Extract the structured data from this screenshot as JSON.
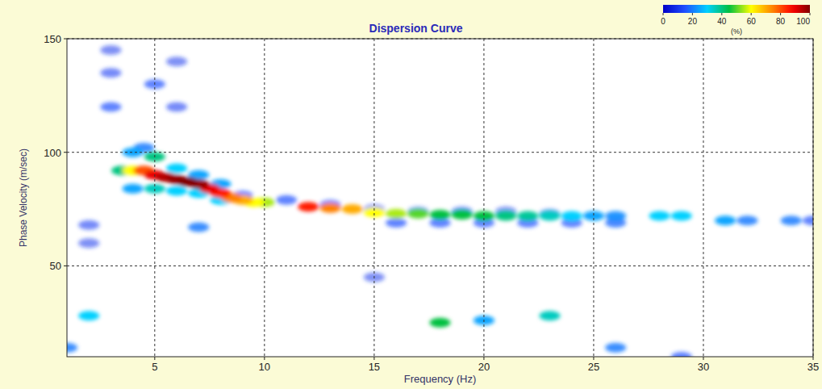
{
  "chart_data": {
    "type": "heatmap",
    "title": "Dispersion Curve",
    "x_label": "Frequency (Hz)",
    "y_label": "Phase Velocity (m/sec)",
    "xlim": [
      1,
      35
    ],
    "ylim": [
      10,
      150
    ],
    "xticks": [
      5,
      10,
      15,
      20,
      25,
      30,
      35
    ],
    "yticks": [
      50,
      100,
      150
    ],
    "grid": true,
    "cells": {
      "x": [
        3,
        3,
        3,
        6,
        6,
        2,
        2,
        15,
        29,
        9,
        11,
        13,
        15,
        17,
        19,
        21,
        23,
        16,
        18,
        20,
        22,
        24,
        26,
        5,
        25,
        35,
        1,
        26,
        32,
        34,
        7,
        4.5,
        4,
        4,
        20,
        7,
        6,
        6,
        8,
        26,
        31,
        8,
        7,
        5,
        2,
        5,
        25,
        24,
        23,
        3.5,
        22,
        21,
        18,
        19,
        20,
        23,
        28,
        29,
        17,
        10,
        4,
        16,
        9.5,
        15,
        9,
        14,
        18,
        8.5,
        13,
        4.5,
        8,
        12,
        7.5,
        5,
        5.5,
        7,
        6,
        6.5
      ],
      "y": [
        120,
        135,
        145,
        120,
        140,
        60,
        68,
        45,
        10,
        81,
        79,
        77,
        75,
        74,
        74,
        74,
        73,
        69,
        69,
        69,
        69,
        69,
        69,
        130,
        72,
        70,
        14,
        14,
        70,
        70,
        67,
        102,
        100,
        84,
        26,
        90,
        93,
        83,
        86,
        72,
        70,
        79,
        82,
        84,
        28,
        98,
        72,
        72,
        72,
        92,
        72,
        72,
        25,
        72.5,
        72,
        28,
        72,
        72,
        73,
        78,
        92,
        73,
        78,
        73.5,
        79,
        75,
        72.5,
        80,
        75.5,
        92,
        82,
        76,
        84,
        90,
        89,
        86,
        88,
        87
      ],
      "values": [
        15,
        12,
        10,
        12,
        10,
        10,
        12,
        10,
        15,
        15,
        15,
        15,
        12,
        12,
        12,
        10,
        10,
        15,
        15,
        15,
        15,
        15,
        18,
        15,
        25,
        15,
        20,
        20,
        20,
        20,
        20,
        20,
        25,
        25,
        25,
        25,
        30,
        30,
        25,
        22,
        25,
        30,
        30,
        35,
        30,
        40,
        25,
        30,
        35,
        40,
        38,
        40,
        45,
        45,
        45,
        35,
        30,
        30,
        50,
        55,
        60,
        55,
        60,
        60,
        70,
        70,
        45,
        75,
        75,
        80,
        85,
        85,
        90,
        90,
        95,
        98,
        98,
        100
      ]
    },
    "colorbar": {
      "label": "(%)",
      "range": [
        0,
        100
      ],
      "ticks": [
        0,
        20,
        40,
        60,
        80,
        100
      ]
    }
  }
}
